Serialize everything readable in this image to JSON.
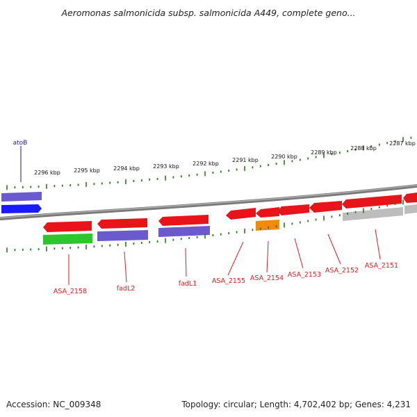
{
  "title": "Aeromonas salmonicida subsp. salmonicida A449, complete geno...",
  "footer": {
    "accession": "Accession: NC_009348",
    "topology": "Topology: circular; Length: 4,702,402 bp; Genes: 4,231"
  },
  "scale_labels": [
    "2296 kbp",
    "2295 kbp",
    "2294 kbp",
    "2293 kbp",
    "2292 kbp",
    "2291 kbp",
    "2290 kbp",
    "2289 kbp",
    "2288 kbp",
    "2287 kbp"
  ],
  "gene_labels": [
    "atoB",
    "ASA_2158",
    "fadL2",
    "fadL1",
    "ASA_2155",
    "ASA_2154",
    "ASA_2153",
    "ASA_2152",
    "ASA_2151"
  ],
  "colors": {
    "cds_red": "#e8141a",
    "blue": "#1a1aff",
    "purple": "#6a5acd",
    "green": "#2ec62e",
    "orange": "#f48a0c",
    "gray": "#bdbdbd",
    "tick_green": "#2a7a1a",
    "label_red": "#e31a1c",
    "label_blue": "#1a1aa6"
  }
}
